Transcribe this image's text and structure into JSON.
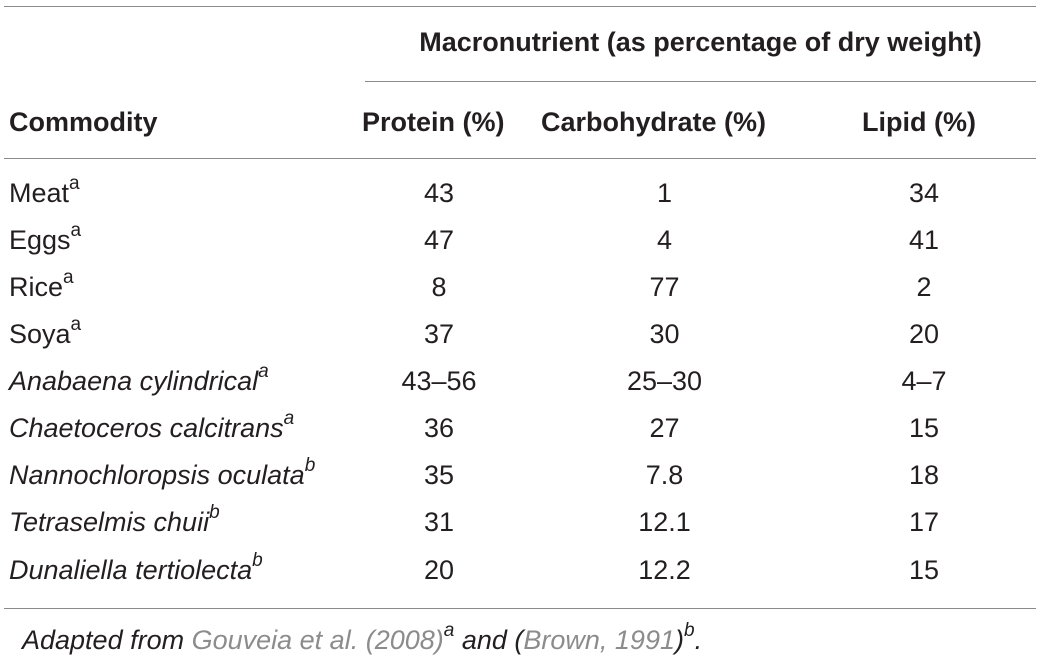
{
  "table": {
    "group_header": "Macronutrient (as percentage of dry weight)",
    "columns": [
      "Commodity",
      "Protein (%)",
      "Carbohydrate (%)",
      "Lipid (%)"
    ],
    "rows": [
      {
        "name": "Meat",
        "mark": "a",
        "italic": false,
        "protein": "43",
        "carbohydrate": "1",
        "lipid": "34"
      },
      {
        "name": "Eggs",
        "mark": "a",
        "italic": false,
        "protein": "47",
        "carbohydrate": "4",
        "lipid": "41"
      },
      {
        "name": "Rice",
        "mark": "a",
        "italic": false,
        "protein": "8",
        "carbohydrate": "77",
        "lipid": "2"
      },
      {
        "name": "Soya",
        "mark": "a",
        "italic": false,
        "protein": "37",
        "carbohydrate": "30",
        "lipid": "20"
      },
      {
        "name": "Anabaena cylindrical",
        "mark": "a",
        "italic": true,
        "protein": "43–56",
        "carbohydrate": "25–30",
        "lipid": "4–7"
      },
      {
        "name": "Chaetoceros calcitrans",
        "mark": "a",
        "italic": true,
        "protein": "36",
        "carbohydrate": "27",
        "lipid": "15"
      },
      {
        "name": "Nannochloropsis oculata",
        "mark": "b",
        "italic": true,
        "protein": "35",
        "carbohydrate": "7.8",
        "lipid": "18"
      },
      {
        "name": "Tetraselmis chuii",
        "mark": "b",
        "italic": true,
        "protein": "31",
        "carbohydrate": "12.1",
        "lipid": "17"
      },
      {
        "name": "Dunaliella tertiolecta",
        "mark": "b",
        "italic": true,
        "protein": "20",
        "carbohydrate": "12.2",
        "lipid": "15"
      }
    ]
  },
  "footnote": {
    "prefix": "Adapted from ",
    "ref_a": "Gouveia et al. (2008)",
    "mark_a": "a",
    "middle": " and (",
    "ref_b": "Brown, 1991",
    "close": ")",
    "mark_b": "b",
    "end": "."
  }
}
